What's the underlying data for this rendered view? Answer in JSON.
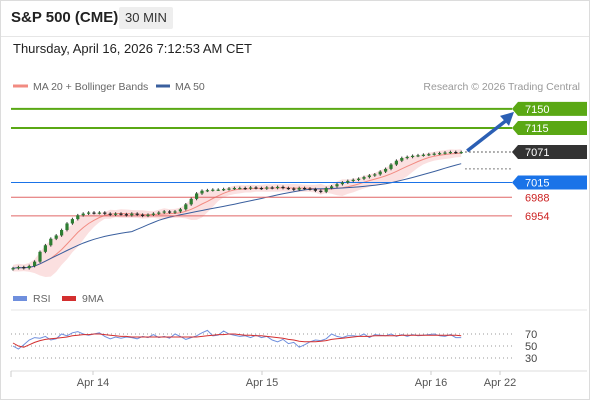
{
  "header": {
    "title": "S&P 500 (CME)",
    "interval": "30 MIN",
    "timestamp": "Thursday, April 16, 2026 7:12:53 AM CET"
  },
  "legend": {
    "ma20": "MA 20 + Bollinger Bands",
    "ma50": "MA 50",
    "credit": "Research © 2026 Trading Central",
    "rsi": "RSI",
    "rsi_ma": "9MA"
  },
  "colors": {
    "ma20": "#f28b82",
    "ma50": "#3a5f9e",
    "green": "#5aa814",
    "blue": "#1a73e8",
    "red": "#e06666",
    "dark": "#333333",
    "rsi": "#6f8fdd",
    "rsi_ma": "#d32f2f"
  },
  "chart_data": {
    "type": "candlestick",
    "ylim": [
      6840,
      7170
    ],
    "x_ticks": [
      {
        "label": "Apr 14",
        "t": 81
      },
      {
        "label": "Apr 15",
        "t": 250
      },
      {
        "label": "Apr 16",
        "t": 419
      },
      {
        "label": "Apr 22",
        "t": 488
      }
    ],
    "price_close": [
      6858,
      6860,
      6858,
      6862,
      6870,
      6888,
      6900,
      6912,
      6918,
      6928,
      6940,
      6948,
      6955,
      6958,
      6960,
      6959,
      6960,
      6958,
      6956,
      6958,
      6957,
      6955,
      6958,
      6956,
      6954,
      6956,
      6958,
      6960,
      6962,
      6960,
      6962,
      6966,
      6975,
      6985,
      6995,
      7000,
      7001,
      7002,
      7002,
      7003,
      7004,
      7005,
      7005,
      7004,
      7006,
      7005,
      7004,
      7006,
      7005,
      7007,
      7005,
      7004,
      7002,
      7005,
      7004,
      7003,
      7000,
      6998,
      7005,
      7008,
      7012,
      7015,
      7018,
      7020,
      7022,
      7025,
      7028,
      7030,
      7035,
      7040,
      7048,
      7055,
      7060,
      7062,
      7064,
      7065,
      7066,
      7067,
      7068,
      7069,
      7070,
      7071,
      7070,
      7071
    ],
    "lines": [
      {
        "label": "7150",
        "value": 7150,
        "color": "green"
      },
      {
        "label": "7115",
        "value": 7115,
        "color": "green"
      },
      {
        "label": "7071",
        "value": 7071,
        "color": "dark"
      },
      {
        "label": "7015",
        "value": 7015,
        "color": "blue"
      },
      {
        "label": "6988",
        "value": 6988,
        "color": "red"
      },
      {
        "label": "6954",
        "value": 6954,
        "color": "red"
      }
    ],
    "rsi": {
      "ylim": [
        0,
        100
      ],
      "levels": [
        70,
        50,
        30
      ],
      "values": [
        50,
        45,
        52,
        60,
        64,
        63,
        66,
        60,
        62,
        70,
        67,
        72,
        74,
        70,
        68,
        70,
        72,
        66,
        62,
        65,
        63,
        65,
        64,
        62,
        66,
        64,
        69,
        64,
        66,
        63,
        70,
        66,
        61,
        64,
        67,
        72,
        76,
        67,
        68,
        75,
        70,
        68,
        66,
        67,
        64,
        68,
        64,
        66,
        60,
        57,
        61,
        54,
        56,
        48,
        52,
        57,
        60,
        59,
        62,
        70,
        66,
        64,
        67,
        67,
        66,
        70,
        64,
        69,
        68,
        67,
        70,
        66,
        69,
        66,
        69,
        67,
        68,
        69,
        70,
        67,
        66,
        69,
        64,
        64
      ],
      "ma_values": [
        55,
        50,
        48,
        52,
        56,
        59,
        61,
        62,
        63,
        64,
        65,
        67,
        68,
        69,
        69,
        70,
        70,
        69,
        68,
        67,
        66,
        66,
        65,
        65,
        65,
        65,
        65,
        65,
        65,
        65,
        65,
        65,
        65,
        65,
        65,
        66,
        67,
        68,
        69,
        69,
        70,
        70,
        69,
        68,
        68,
        67,
        67,
        66,
        65,
        64,
        63,
        61,
        60,
        58,
        57,
        57,
        57,
        58,
        59,
        61,
        62,
        63,
        64,
        65,
        66,
        66,
        66,
        67,
        67,
        67,
        67,
        67,
        68,
        68,
        68,
        68,
        68,
        68,
        68,
        68,
        68,
        68,
        68,
        67
      ]
    }
  }
}
